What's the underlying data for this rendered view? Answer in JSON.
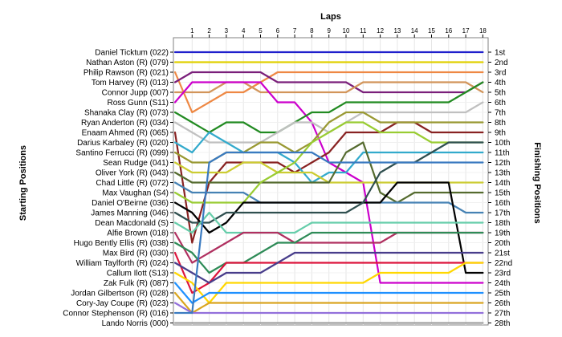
{
  "chart_data": {
    "type": "line",
    "top_axis_title": "Laps",
    "left_axis_title": "Starting Positions",
    "right_axis_title": "Finishing Positions",
    "laps": [
      1,
      2,
      3,
      4,
      5,
      6,
      7,
      8,
      9,
      10,
      11,
      12,
      13,
      14,
      15,
      16,
      17,
      18
    ],
    "position_labels": [
      "1st",
      "2nd",
      "3rd",
      "4th",
      "5th",
      "6th",
      "7th",
      "8th",
      "9th",
      "10th",
      "11th",
      "12th",
      "13th",
      "14th",
      "15th",
      "16th",
      "17th",
      "18th",
      "19th",
      "20th",
      "21st",
      "22nd",
      "23rd",
      "24th",
      "25th",
      "26th",
      "27th",
      "28th"
    ],
    "drivers": [
      "Daniel Ticktum (022)",
      "Nathan Aston (R) (079)",
      "Philip Rawson (R) (021)",
      "Tom Harvey (R) (013)",
      "Connor Jupp (007)",
      "Ross Gunn (S11)",
      "Shanaka Clay (R) (073)",
      "Ryan Anderton (R) (034)",
      "Enaam Ahmed (R) (065)",
      "Darius Karbaley (R) (020)",
      "Santino Ferrucci (R) (099)",
      "Sean Rudge (041)",
      "Oliver York (R) (043)",
      "Chad Little (R) (072)",
      "Max Vaughan (S4)",
      "Daniel O'Beirne (036)",
      "James Manning (046)",
      "Dean Macdonald (S)",
      "Alfie Brown (018)",
      "Hugo Bently Ellis (R) (038)",
      "Max Bird  (R) (030)",
      "William Taylforth (R) (024)",
      "Callum Ilott (S13)",
      "Zak Fulk (R) (087)",
      "Jordan Gilbertson (R) (028)",
      "Cory-Jay Coupe (R) (023)",
      "Connor Stephenson (R) (016)",
      "Lando Norris (000)"
    ],
    "series": [
      {
        "color": "#1f1fcc",
        "positions": [
          1,
          1,
          1,
          1,
          1,
          1,
          1,
          1,
          1,
          1,
          1,
          1,
          1,
          1,
          1,
          1,
          1,
          1,
          1
        ]
      },
      {
        "color": "#e0d000",
        "positions": [
          2,
          2,
          2,
          2,
          2,
          2,
          2,
          2,
          2,
          2,
          2,
          2,
          2,
          2,
          2,
          2,
          2,
          2,
          2
        ]
      },
      {
        "color": "#ee8844",
        "positions": [
          3,
          7,
          6,
          5,
          5,
          4,
          3,
          3,
          3,
          3,
          3,
          3,
          3,
          3,
          3,
          3,
          3,
          3,
          3
        ]
      },
      {
        "color": "#7a1f7a",
        "positions": [
          4,
          3,
          3,
          3,
          3,
          3,
          4,
          4,
          4,
          4,
          4,
          5,
          5,
          5,
          5,
          5,
          5,
          5,
          4
        ]
      },
      {
        "color": "#d2955a",
        "positions": [
          5,
          5,
          5,
          4,
          4,
          5,
          5,
          5,
          5,
          5,
          5,
          4,
          4,
          4,
          4,
          4,
          4,
          4,
          5
        ]
      },
      {
        "color": "#cc00cc",
        "positions": [
          6,
          4,
          4,
          4,
          4,
          4,
          6,
          6,
          8,
          12,
          13,
          14,
          24,
          24,
          24,
          24,
          24,
          24,
          24
        ]
      },
      {
        "color": "#228b22",
        "positions": [
          7,
          8,
          9,
          8,
          8,
          9,
          9,
          8,
          7,
          7,
          6,
          6,
          6,
          6,
          6,
          6,
          6,
          5,
          4
        ]
      },
      {
        "color": "#c0c0c0",
        "positions": [
          8,
          9,
          10,
          10,
          10,
          10,
          9,
          8,
          8,
          9,
          8,
          7,
          7,
          7,
          7,
          7,
          7,
          7,
          6
        ]
      },
      {
        "color": "#882222",
        "positions": [
          9,
          20,
          14,
          12,
          12,
          12,
          12,
          13,
          12,
          11,
          9,
          9,
          9,
          8,
          8,
          9,
          9,
          9,
          9
        ]
      },
      {
        "color": "#33aacc",
        "positions": [
          10,
          11,
          9,
          10,
          11,
          11,
          11,
          12,
          14,
          13,
          13,
          11,
          11,
          11,
          11,
          11,
          11,
          11,
          11
        ]
      },
      {
        "color": "#999933",
        "positions": [
          11,
          12,
          12,
          11,
          11,
          10,
          10,
          11,
          10,
          8,
          7,
          7,
          8,
          8,
          8,
          8,
          8,
          8,
          8
        ]
      },
      {
        "color": "#cccc33",
        "positions": [
          12,
          13,
          13,
          13,
          12,
          12,
          13,
          13,
          13,
          14,
          14,
          14,
          14,
          14,
          14,
          14,
          14,
          14,
          14
        ]
      },
      {
        "color": "#556b2f",
        "positions": [
          13,
          14,
          14,
          14,
          14,
          14,
          14,
          14,
          14,
          14,
          11,
          10,
          15,
          16,
          15,
          15,
          15,
          15,
          15
        ]
      },
      {
        "color": "#4682b4",
        "positions": [
          14,
          15,
          15,
          15,
          15,
          16,
          16,
          16,
          16,
          16,
          16,
          16,
          16,
          16,
          16,
          16,
          16,
          17,
          17
        ]
      },
      {
        "color": "#99cc33",
        "positions": [
          15,
          16,
          16,
          16,
          16,
          14,
          13,
          12,
          10,
          9,
          8,
          8,
          9,
          9,
          9,
          10,
          10,
          10,
          10
        ]
      },
      {
        "color": "#000000",
        "positions": [
          16,
          17,
          19,
          18,
          16,
          16,
          16,
          16,
          16,
          16,
          16,
          16,
          16,
          14,
          14,
          14,
          14,
          23,
          23
        ]
      },
      {
        "color": "#2f4f4f",
        "positions": [
          17,
          18,
          18,
          17,
          17,
          17,
          17,
          17,
          17,
          17,
          17,
          16,
          13,
          12,
          12,
          11,
          10,
          10,
          10
        ]
      },
      {
        "color": "#66cdaa",
        "positions": [
          18,
          19,
          17,
          19,
          19,
          19,
          19,
          19,
          18,
          18,
          18,
          18,
          18,
          18,
          18,
          18,
          18,
          18,
          18
        ]
      },
      {
        "color": "#b03060",
        "positions": [
          19,
          22,
          21,
          20,
          19,
          19,
          19,
          20,
          20,
          20,
          20,
          20,
          20,
          19,
          19,
          19,
          19,
          19,
          19
        ]
      },
      {
        "color": "#2e8b57",
        "positions": [
          20,
          21,
          23,
          22,
          22,
          21,
          20,
          20,
          19,
          19,
          19,
          19,
          19,
          19,
          19,
          19,
          19,
          19,
          19
        ]
      },
      {
        "color": "#dc143c",
        "positions": [
          21,
          25,
          24,
          22,
          22,
          22,
          22,
          22,
          22,
          22,
          22,
          22,
          22,
          22,
          22,
          22,
          22,
          22,
          22
        ]
      },
      {
        "color": "#483d8b",
        "positions": [
          22,
          23,
          24,
          23,
          23,
          23,
          22,
          21,
          21,
          21,
          21,
          21,
          21,
          21,
          21,
          21,
          21,
          21,
          21
        ]
      },
      {
        "color": "#ffd700",
        "positions": [
          23,
          24,
          26,
          24,
          24,
          24,
          24,
          24,
          24,
          24,
          24,
          24,
          23,
          23,
          23,
          23,
          23,
          22,
          22
        ]
      },
      {
        "color": "#1e90ff",
        "positions": [
          24,
          26,
          25,
          25,
          25,
          25,
          25,
          25,
          25,
          25,
          25,
          25,
          25,
          25,
          25,
          25,
          25,
          25,
          25
        ]
      },
      {
        "color": "#daa520",
        "positions": [
          25,
          27,
          26,
          26,
          26,
          26,
          26,
          26,
          26,
          26,
          26,
          26,
          26,
          26,
          26,
          26,
          26,
          26,
          26
        ]
      },
      {
        "color": "#9370db",
        "positions": [
          26,
          27,
          27,
          27,
          27,
          27,
          27,
          27,
          27,
          27,
          27,
          27,
          27,
          27,
          27,
          27,
          27,
          27,
          27
        ]
      },
      {
        "color": "#3a7ac0",
        "positions": [
          27,
          27,
          12,
          11,
          11,
          11,
          11,
          11,
          11,
          12,
          12,
          12,
          12,
          12,
          12,
          12,
          12,
          12,
          12
        ]
      },
      {
        "color": "#a0a0a0",
        "positions": [
          28,
          28,
          28,
          28,
          28,
          28,
          28,
          28,
          28,
          28,
          28,
          28,
          28,
          28,
          28,
          28,
          28,
          28,
          28
        ]
      }
    ]
  }
}
